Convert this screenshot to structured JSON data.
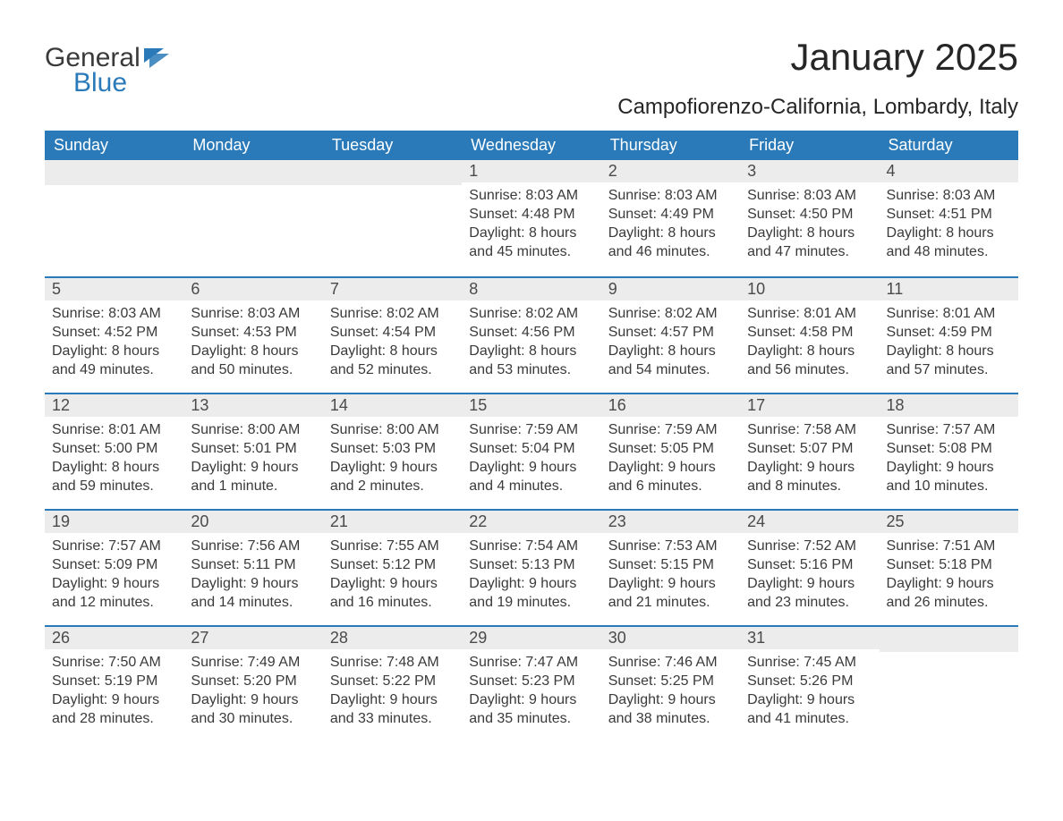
{
  "logo": {
    "text1": "General",
    "text2": "Blue"
  },
  "title": "January 2025",
  "location": "Campofiorenzo-California, Lombardy, Italy",
  "colors": {
    "header_bg": "#2a7ab9",
    "header_fg": "#ffffff",
    "daynum_bg": "#ececec",
    "border_top": "#2a7ab9",
    "body_bg": "#ffffff",
    "text": "#3a3a3a"
  },
  "weekdays": [
    "Sunday",
    "Monday",
    "Tuesday",
    "Wednesday",
    "Thursday",
    "Friday",
    "Saturday"
  ],
  "weeks": [
    [
      null,
      null,
      null,
      {
        "n": "1",
        "sr": "Sunrise: 8:03 AM",
        "ss": "Sunset: 4:48 PM",
        "dl": "Daylight: 8 hours and 45 minutes."
      },
      {
        "n": "2",
        "sr": "Sunrise: 8:03 AM",
        "ss": "Sunset: 4:49 PM",
        "dl": "Daylight: 8 hours and 46 minutes."
      },
      {
        "n": "3",
        "sr": "Sunrise: 8:03 AM",
        "ss": "Sunset: 4:50 PM",
        "dl": "Daylight: 8 hours and 47 minutes."
      },
      {
        "n": "4",
        "sr": "Sunrise: 8:03 AM",
        "ss": "Sunset: 4:51 PM",
        "dl": "Daylight: 8 hours and 48 minutes."
      }
    ],
    [
      {
        "n": "5",
        "sr": "Sunrise: 8:03 AM",
        "ss": "Sunset: 4:52 PM",
        "dl": "Daylight: 8 hours and 49 minutes."
      },
      {
        "n": "6",
        "sr": "Sunrise: 8:03 AM",
        "ss": "Sunset: 4:53 PM",
        "dl": "Daylight: 8 hours and 50 minutes."
      },
      {
        "n": "7",
        "sr": "Sunrise: 8:02 AM",
        "ss": "Sunset: 4:54 PM",
        "dl": "Daylight: 8 hours and 52 minutes."
      },
      {
        "n": "8",
        "sr": "Sunrise: 8:02 AM",
        "ss": "Sunset: 4:56 PM",
        "dl": "Daylight: 8 hours and 53 minutes."
      },
      {
        "n": "9",
        "sr": "Sunrise: 8:02 AM",
        "ss": "Sunset: 4:57 PM",
        "dl": "Daylight: 8 hours and 54 minutes."
      },
      {
        "n": "10",
        "sr": "Sunrise: 8:01 AM",
        "ss": "Sunset: 4:58 PM",
        "dl": "Daylight: 8 hours and 56 minutes."
      },
      {
        "n": "11",
        "sr": "Sunrise: 8:01 AM",
        "ss": "Sunset: 4:59 PM",
        "dl": "Daylight: 8 hours and 57 minutes."
      }
    ],
    [
      {
        "n": "12",
        "sr": "Sunrise: 8:01 AM",
        "ss": "Sunset: 5:00 PM",
        "dl": "Daylight: 8 hours and 59 minutes."
      },
      {
        "n": "13",
        "sr": "Sunrise: 8:00 AM",
        "ss": "Sunset: 5:01 PM",
        "dl": "Daylight: 9 hours and 1 minute."
      },
      {
        "n": "14",
        "sr": "Sunrise: 8:00 AM",
        "ss": "Sunset: 5:03 PM",
        "dl": "Daylight: 9 hours and 2 minutes."
      },
      {
        "n": "15",
        "sr": "Sunrise: 7:59 AM",
        "ss": "Sunset: 5:04 PM",
        "dl": "Daylight: 9 hours and 4 minutes."
      },
      {
        "n": "16",
        "sr": "Sunrise: 7:59 AM",
        "ss": "Sunset: 5:05 PM",
        "dl": "Daylight: 9 hours and 6 minutes."
      },
      {
        "n": "17",
        "sr": "Sunrise: 7:58 AM",
        "ss": "Sunset: 5:07 PM",
        "dl": "Daylight: 9 hours and 8 minutes."
      },
      {
        "n": "18",
        "sr": "Sunrise: 7:57 AM",
        "ss": "Sunset: 5:08 PM",
        "dl": "Daylight: 9 hours and 10 minutes."
      }
    ],
    [
      {
        "n": "19",
        "sr": "Sunrise: 7:57 AM",
        "ss": "Sunset: 5:09 PM",
        "dl": "Daylight: 9 hours and 12 minutes."
      },
      {
        "n": "20",
        "sr": "Sunrise: 7:56 AM",
        "ss": "Sunset: 5:11 PM",
        "dl": "Daylight: 9 hours and 14 minutes."
      },
      {
        "n": "21",
        "sr": "Sunrise: 7:55 AM",
        "ss": "Sunset: 5:12 PM",
        "dl": "Daylight: 9 hours and 16 minutes."
      },
      {
        "n": "22",
        "sr": "Sunrise: 7:54 AM",
        "ss": "Sunset: 5:13 PM",
        "dl": "Daylight: 9 hours and 19 minutes."
      },
      {
        "n": "23",
        "sr": "Sunrise: 7:53 AM",
        "ss": "Sunset: 5:15 PM",
        "dl": "Daylight: 9 hours and 21 minutes."
      },
      {
        "n": "24",
        "sr": "Sunrise: 7:52 AM",
        "ss": "Sunset: 5:16 PM",
        "dl": "Daylight: 9 hours and 23 minutes."
      },
      {
        "n": "25",
        "sr": "Sunrise: 7:51 AM",
        "ss": "Sunset: 5:18 PM",
        "dl": "Daylight: 9 hours and 26 minutes."
      }
    ],
    [
      {
        "n": "26",
        "sr": "Sunrise: 7:50 AM",
        "ss": "Sunset: 5:19 PM",
        "dl": "Daylight: 9 hours and 28 minutes."
      },
      {
        "n": "27",
        "sr": "Sunrise: 7:49 AM",
        "ss": "Sunset: 5:20 PM",
        "dl": "Daylight: 9 hours and 30 minutes."
      },
      {
        "n": "28",
        "sr": "Sunrise: 7:48 AM",
        "ss": "Sunset: 5:22 PM",
        "dl": "Daylight: 9 hours and 33 minutes."
      },
      {
        "n": "29",
        "sr": "Sunrise: 7:47 AM",
        "ss": "Sunset: 5:23 PM",
        "dl": "Daylight: 9 hours and 35 minutes."
      },
      {
        "n": "30",
        "sr": "Sunrise: 7:46 AM",
        "ss": "Sunset: 5:25 PM",
        "dl": "Daylight: 9 hours and 38 minutes."
      },
      {
        "n": "31",
        "sr": "Sunrise: 7:45 AM",
        "ss": "Sunset: 5:26 PM",
        "dl": "Daylight: 9 hours and 41 minutes."
      },
      null
    ]
  ]
}
